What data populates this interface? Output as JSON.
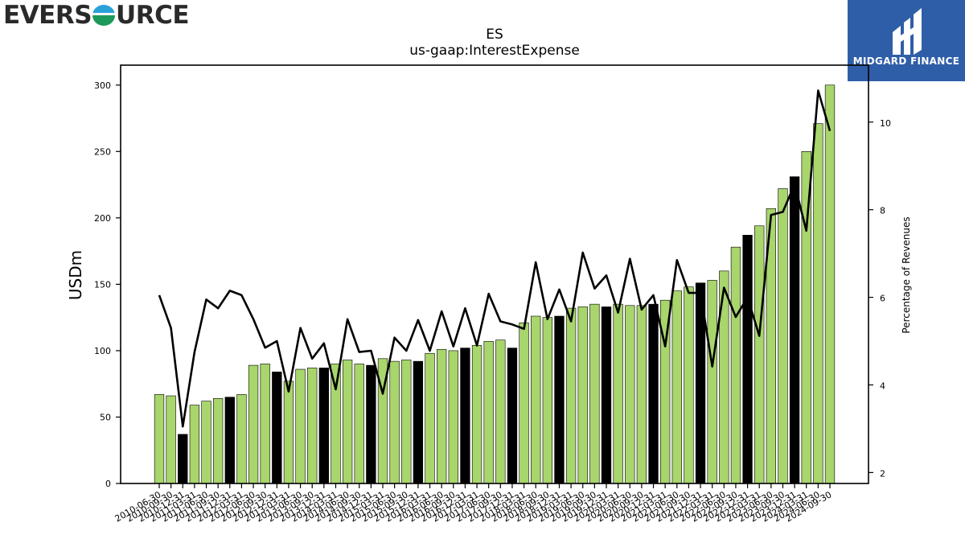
{
  "logos": {
    "left_text_pre": "EVERS",
    "left_text_post": "URCE",
    "right_brand": "MIDGARD FINANCE"
  },
  "chart_data": {
    "type": "bar",
    "title": "ES",
    "subtitle": "us-gaap:InterestExpense",
    "ylabel": "USDm",
    "y2label": "Percentage of Revenues",
    "ylim": [
      0,
      315
    ],
    "y2lim": [
      1.75,
      11.3
    ],
    "yticks": [
      0,
      50,
      100,
      150,
      200,
      250,
      300
    ],
    "y2ticks": [
      2,
      4,
      6,
      8,
      10
    ],
    "colors": {
      "bar": "#a8d56c",
      "bar_q4": "#000000",
      "line": "#000000"
    },
    "categories": [
      "2010-06-30",
      "2010-09-30",
      "2010-12-31",
      "2011-03-31",
      "2011-06-30",
      "2011-09-30",
      "2011-12-31",
      "2012-03-31",
      "2012-06-30",
      "2012-09-30",
      "2012-12-31",
      "2013-03-31",
      "2013-06-30",
      "2013-09-30",
      "2013-12-31",
      "2014-03-31",
      "2014-06-30",
      "2014-09-30",
      "2014-12-31",
      "2015-03-31",
      "2015-06-30",
      "2015-09-30",
      "2015-12-31",
      "2016-03-31",
      "2016-06-30",
      "2016-09-30",
      "2016-12-31",
      "2017-03-31",
      "2017-06-30",
      "2017-09-30",
      "2017-12-31",
      "2018-03-31",
      "2018-06-30",
      "2018-09-30",
      "2018-12-31",
      "2019-03-31",
      "2019-06-30",
      "2019-09-30",
      "2019-12-31",
      "2020-03-31",
      "2020-06-30",
      "2020-09-30",
      "2020-12-31",
      "2021-03-31",
      "2021-06-30",
      "2021-09-30",
      "2021-12-31",
      "2022-03-31",
      "2022-06-30",
      "2022-09-30",
      "2022-12-31",
      "2023-03-31",
      "2023-06-30",
      "2023-09-30",
      "2023-12-31",
      "2024-03-31",
      "2024-06-30",
      "2024-09-30"
    ],
    "series": [
      {
        "type": "bar",
        "axis": "left",
        "values": [
          67,
          66,
          37,
          59,
          62,
          64,
          65,
          67,
          89,
          90,
          84,
          77,
          86,
          87,
          87,
          90,
          93,
          90,
          89,
          94,
          92,
          93,
          92,
          98,
          101,
          100,
          102,
          104,
          107,
          108,
          102,
          121,
          126,
          125,
          126,
          132,
          133,
          135,
          133,
          135,
          134,
          134,
          135,
          138,
          145,
          148,
          151,
          153,
          160,
          178,
          187,
          194,
          207,
          222,
          231,
          250,
          271,
          300
        ]
      },
      {
        "type": "line",
        "axis": "right",
        "values": [
          6.05,
          5.3,
          3.05,
          4.75,
          5.95,
          5.75,
          6.15,
          6.05,
          5.5,
          4.85,
          5.0,
          3.85,
          5.3,
          4.6,
          4.95,
          3.9,
          5.5,
          4.75,
          4.78,
          3.8,
          5.08,
          4.78,
          5.48,
          4.78,
          5.68,
          4.88,
          5.75,
          4.9,
          6.08,
          5.45,
          5.38,
          5.28,
          6.8,
          5.5,
          6.18,
          5.45,
          7.02,
          6.2,
          6.5,
          5.65,
          6.88,
          5.72,
          6.05,
          4.88,
          6.85,
          6.1,
          6.1,
          4.42,
          6.22,
          5.55,
          6.0,
          5.12,
          7.88,
          7.95,
          8.58,
          7.52,
          10.72,
          9.8
        ]
      }
    ]
  }
}
